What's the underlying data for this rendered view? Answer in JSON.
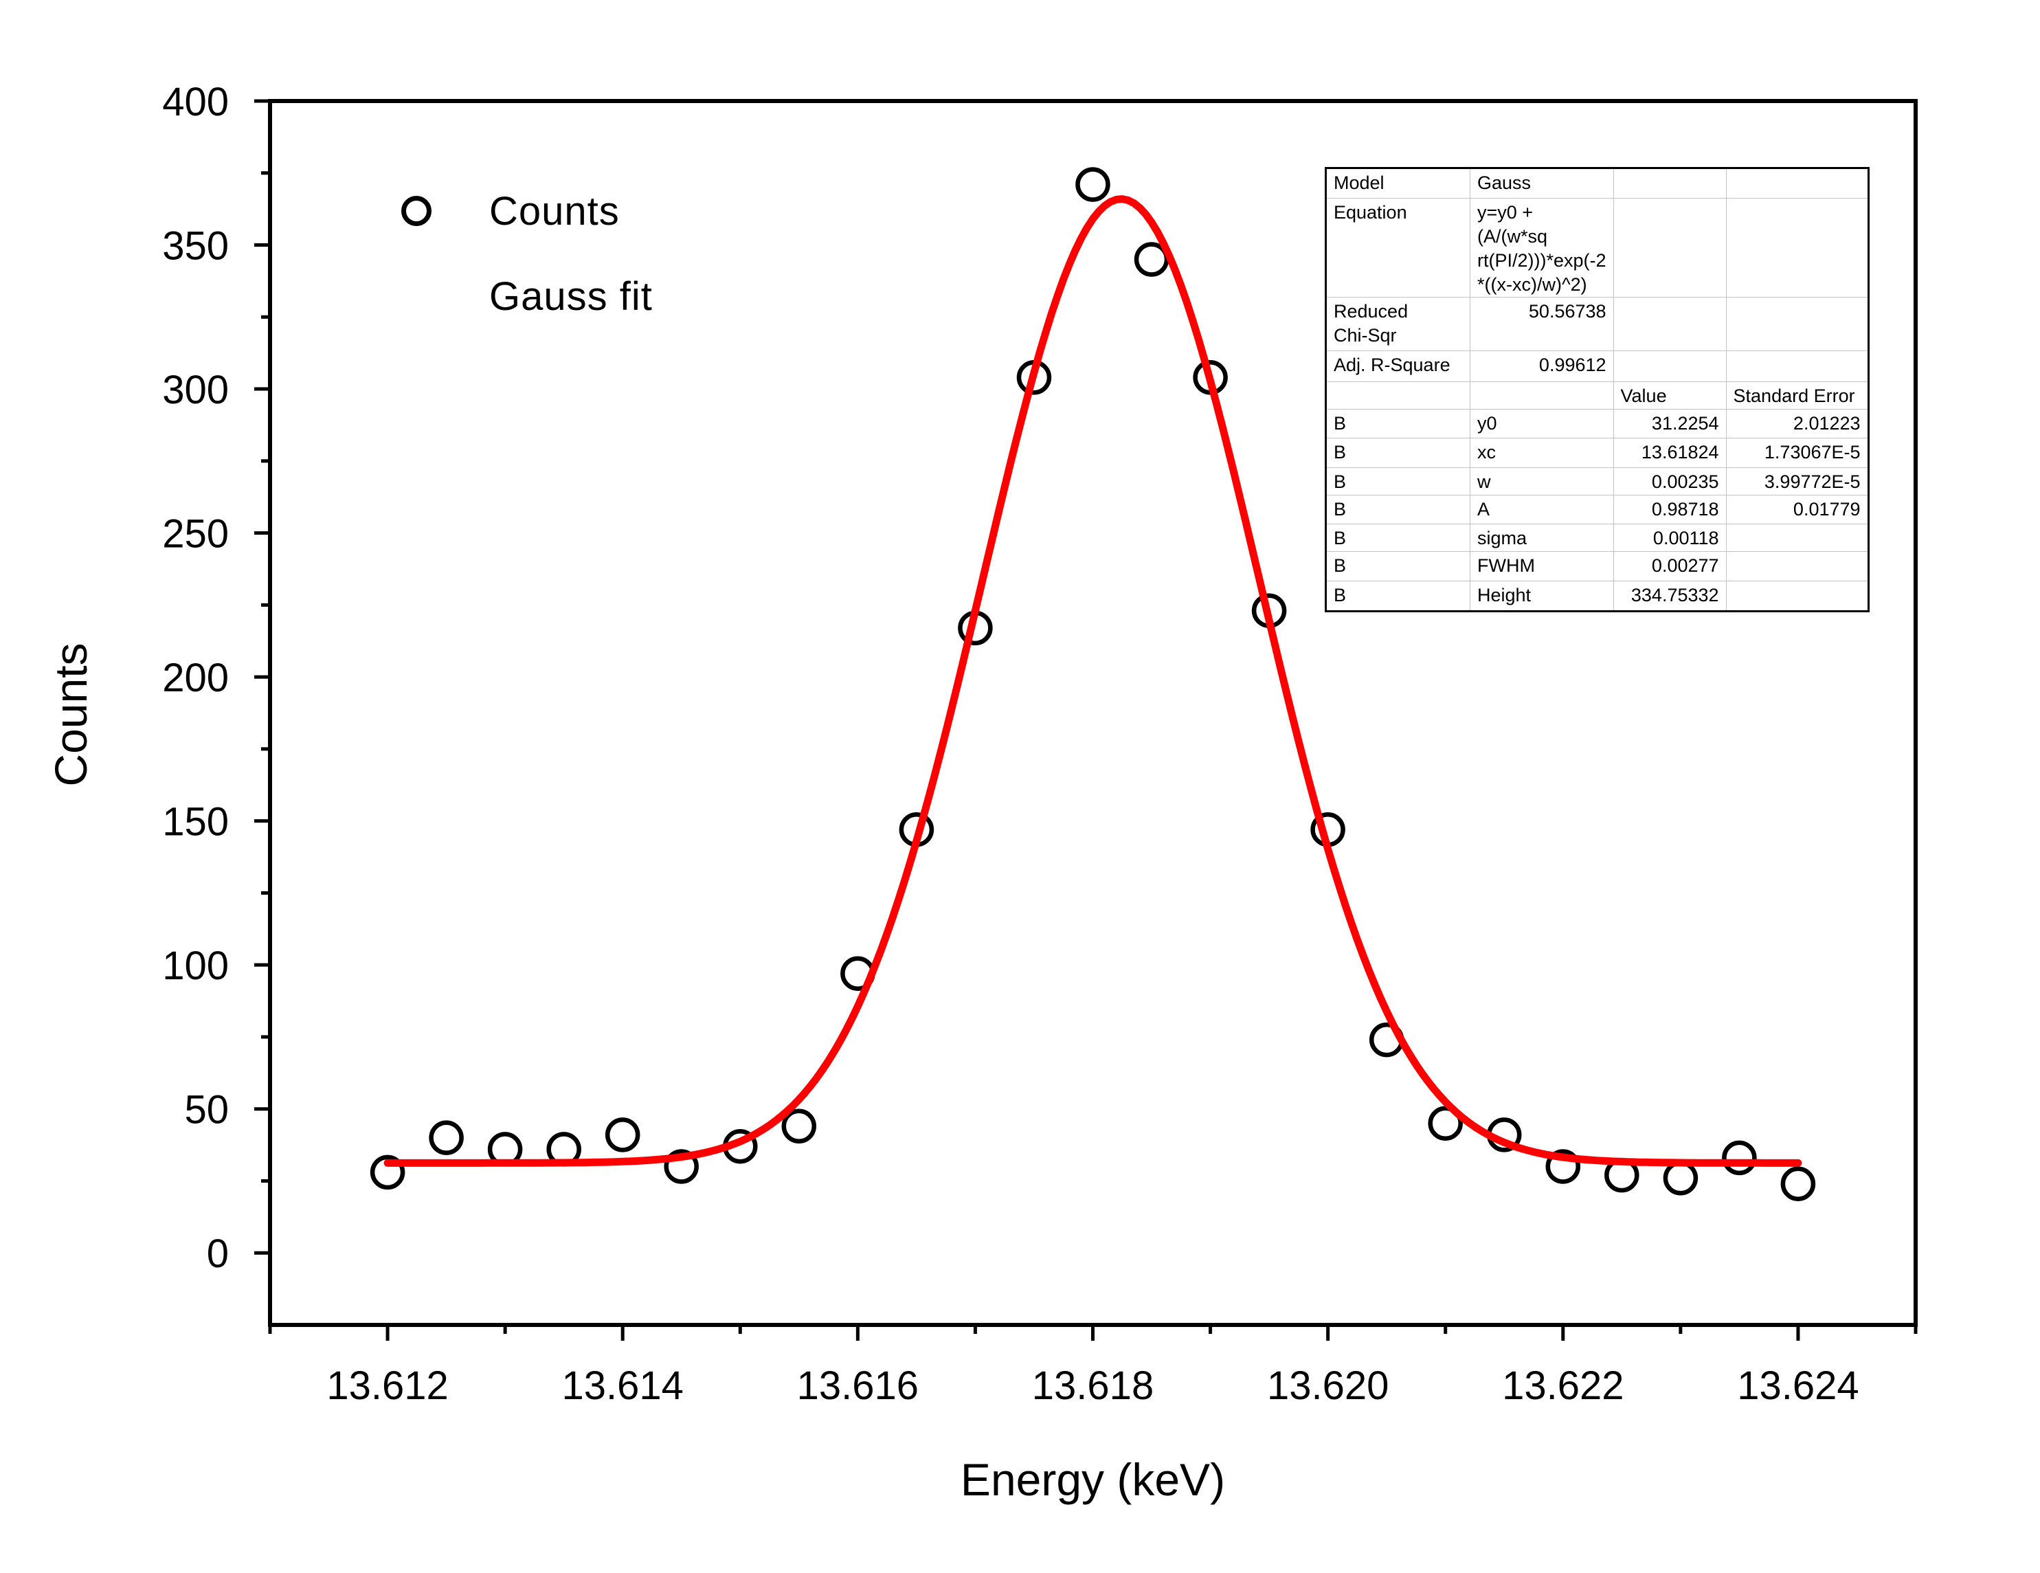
{
  "chart_data": {
    "type": "scatter",
    "title": "",
    "xlabel": "Energy (keV)",
    "ylabel": "Counts",
    "xlim": [
      13.611,
      13.625
    ],
    "ylim": [
      -25,
      400
    ],
    "grid": false,
    "axis_color": "#000000",
    "x_major_ticks": [
      {
        "v": 13.612,
        "label": "13.612"
      },
      {
        "v": 13.614,
        "label": "13.614"
      },
      {
        "v": 13.616,
        "label": "13.616"
      },
      {
        "v": 13.618,
        "label": "13.618"
      },
      {
        "v": 13.62,
        "label": "13.620"
      },
      {
        "v": 13.622,
        "label": "13.622"
      },
      {
        "v": 13.624,
        "label": "13.624"
      }
    ],
    "x_minor_ticks": [
      13.611,
      13.613,
      13.615,
      13.617,
      13.619,
      13.621,
      13.623,
      13.625
    ],
    "y_major_ticks": [
      {
        "v": 0,
        "label": "0"
      },
      {
        "v": 50,
        "label": "50"
      },
      {
        "v": 100,
        "label": "100"
      },
      {
        "v": 150,
        "label": "150"
      },
      {
        "v": 200,
        "label": "200"
      },
      {
        "v": 250,
        "label": "250"
      },
      {
        "v": 300,
        "label": "300"
      },
      {
        "v": 350,
        "label": "350"
      },
      {
        "v": 400,
        "label": "400"
      }
    ],
    "y_minor_ticks": [
      25,
      75,
      125,
      175,
      225,
      275,
      325,
      375
    ],
    "legend": {
      "position": "top-left",
      "items": [
        {
          "label": "Counts",
          "marker": "open-circle",
          "color": "#000000"
        },
        {
          "label": "Gauss fit",
          "marker": "line",
          "color": "#ff0000"
        }
      ]
    },
    "series": [
      {
        "name": "Counts",
        "type": "scatter",
        "marker": "open-circle",
        "color": "#000000",
        "points": [
          [
            13.612,
            28
          ],
          [
            13.6125,
            40
          ],
          [
            13.613,
            36
          ],
          [
            13.6135,
            36
          ],
          [
            13.614,
            41
          ],
          [
            13.6145,
            30
          ],
          [
            13.615,
            37
          ],
          [
            13.6155,
            44
          ],
          [
            13.616,
            97
          ],
          [
            13.6165,
            147
          ],
          [
            13.617,
            217
          ],
          [
            13.6175,
            304
          ],
          [
            13.618,
            371
          ],
          [
            13.6185,
            345
          ],
          [
            13.619,
            304
          ],
          [
            13.6195,
            223
          ],
          [
            13.62,
            147
          ],
          [
            13.6205,
            74
          ],
          [
            13.621,
            45
          ],
          [
            13.6215,
            41
          ],
          [
            13.622,
            30
          ],
          [
            13.6225,
            27
          ],
          [
            13.623,
            26
          ],
          [
            13.6235,
            33
          ],
          [
            13.624,
            24
          ]
        ]
      },
      {
        "name": "Gauss fit",
        "type": "line",
        "color": "#ff0000",
        "x_range": [
          13.612,
          13.624
        ],
        "fit_params": {
          "y0": 31.2254,
          "xc": 13.61824,
          "w": 0.00235,
          "height": 334.75332
        }
      }
    ]
  },
  "fit_table": {
    "rows": [
      [
        "Model",
        "Gauss",
        "",
        ""
      ],
      [
        "Equation",
        "y=y0 + (A/(w*sq\nrt(PI/2)))*exp(-2\n*((x-xc)/w)^2)",
        "",
        ""
      ],
      [
        "Reduced\nChi-Sqr",
        "50.56738",
        "",
        ""
      ],
      [
        "Adj. R-Square",
        "0.99612",
        "",
        ""
      ],
      [
        "",
        "",
        "Value",
        "Standard Error"
      ],
      [
        "B",
        "y0",
        "31.2254",
        "2.01223"
      ],
      [
        "B",
        "xc",
        "13.61824",
        "1.73067E-5"
      ],
      [
        "B",
        "w",
        "0.00235",
        "3.99772E-5"
      ],
      [
        "B",
        "A",
        "0.98718",
        "0.01779"
      ],
      [
        "B",
        "sigma",
        "0.00118",
        ""
      ],
      [
        "B",
        "FWHM",
        "0.00277",
        ""
      ],
      [
        "B",
        "Height",
        "334.75332",
        ""
      ]
    ]
  }
}
